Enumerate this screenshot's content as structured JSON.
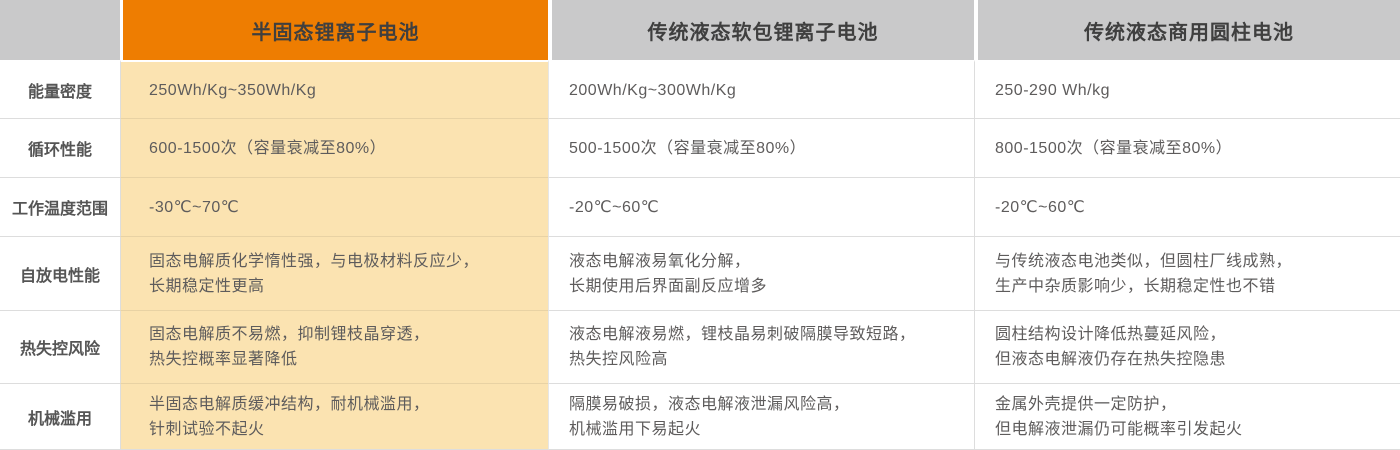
{
  "table": {
    "columns": [
      {
        "label": "半固态锂离子电池",
        "style": "highlight"
      },
      {
        "label": "传统液态软包锂离子电池",
        "style": "normal"
      },
      {
        "label": "传统液态商用圆柱电池",
        "style": "normal"
      }
    ],
    "rows": [
      {
        "label": "能量密度",
        "cells": [
          "250Wh/Kg~350Wh/Kg",
          "200Wh/Kg~300Wh/Kg",
          "250-290 Wh/kg"
        ]
      },
      {
        "label": "循环性能",
        "cells": [
          "600-1500次（容量衰减至80%）",
          "500-1500次（容量衰减至80%）",
          "800-1500次（容量衰减至80%）"
        ]
      },
      {
        "label": "工作温度范围",
        "cells": [
          "-30℃~70℃",
          "-20℃~60℃",
          "-20℃~60℃"
        ]
      },
      {
        "label": "自放电性能",
        "cells": [
          "固态电解质化学惰性强，与电极材料反应少，\n长期稳定性更高",
          "液态电解液易氧化分解，\n长期使用后界面副反应增多",
          "与传统液态电池类似，但圆柱厂线成熟，\n生产中杂质影响少，长期稳定性也不错"
        ]
      },
      {
        "label": "热失控风险",
        "cells": [
          "固态电解质不易燃，抑制锂枝晶穿透，\n热失控概率显著降低",
          "液态电解液易燃，锂枝晶易刺破隔膜导致短路，\n热失控风险高",
          "圆柱结构设计降低热蔓延风险，\n但液态电解液仍存在热失控隐患"
        ]
      },
      {
        "label": "机械滥用",
        "cells": [
          "半固态电解质缓冲结构，耐机械滥用，\n针刺试验不起火",
          "隔膜易破损，液态电解液泄漏风险高，\n机械滥用下易起火",
          "金属外壳提供一定防护，\n但电解液泄漏仍可能概率引发起火"
        ]
      }
    ]
  },
  "colors": {
    "highlight_header_bg": "#ee7d01",
    "highlight_column_bg": "#fbe3b1",
    "gray_header_bg": "#c9c9ca",
    "header_text": "#3f3f3f",
    "row_label_text": "#555555",
    "body_text": "#5e5c5c",
    "border": "#dddddd",
    "cream_divider": "#e8d2a4"
  }
}
